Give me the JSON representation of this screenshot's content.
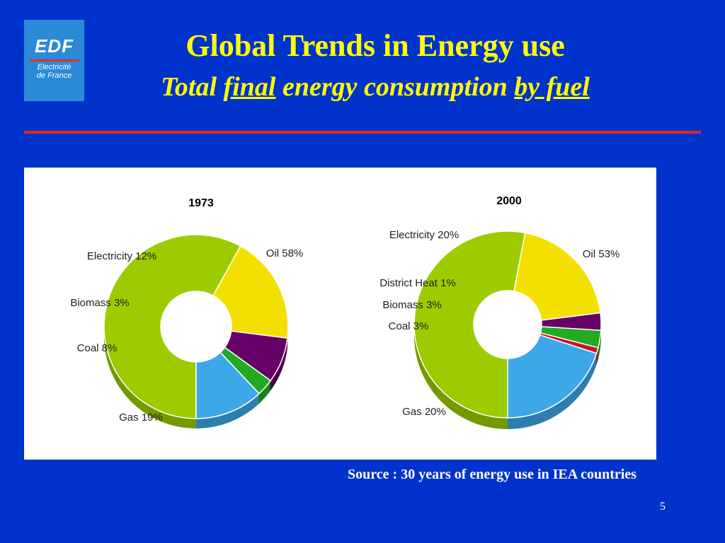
{
  "logo": {
    "name": "EDF",
    "sub_line1": "Electricité",
    "sub_line2": "de France"
  },
  "slide": {
    "title": "Global Trends in Energy use",
    "subtitle_part1": "Total",
    "subtitle_part2": "final",
    "subtitle_part3": "energy consumption",
    "subtitle_part4": "by fuel",
    "source": "Source : 30 years of energy use in IEA countries",
    "page_number": "5"
  },
  "colors": {
    "background": "#0033cc",
    "title": "#ffff00",
    "divider": "#e02a20",
    "Oil": "#9ccc00",
    "Electricity": "#3ca8e8",
    "District Heat": "#cc1122",
    "Biomass": "#22aa22",
    "Coal": "#660066",
    "Gas": "#f4e000"
  },
  "chart_data": [
    {
      "type": "pie",
      "title": "1973",
      "slices": [
        {
          "label": "Oil 58%",
          "category": "Oil",
          "value": 58
        },
        {
          "label": "Gas 19%",
          "category": "Gas",
          "value": 19
        },
        {
          "label": "Coal 8%",
          "category": "Coal",
          "value": 8
        },
        {
          "label": "Biomass 3%",
          "category": "Biomass",
          "value": 3
        },
        {
          "label": "Electricity 12%",
          "category": "Electricity",
          "value": 12
        }
      ]
    },
    {
      "type": "pie",
      "title": "2000",
      "slices": [
        {
          "label": "Oil 53%",
          "category": "Oil",
          "value": 53
        },
        {
          "label": "Gas 20%",
          "category": "Gas",
          "value": 20
        },
        {
          "label": "Coal 3%",
          "category": "Coal",
          "value": 3
        },
        {
          "label": "Biomass 3%",
          "category": "Biomass",
          "value": 3
        },
        {
          "label": "District Heat 1%",
          "category": "District Heat",
          "value": 1
        },
        {
          "label": "Electricity 20%",
          "category": "Electricity",
          "value": 20
        }
      ]
    }
  ]
}
